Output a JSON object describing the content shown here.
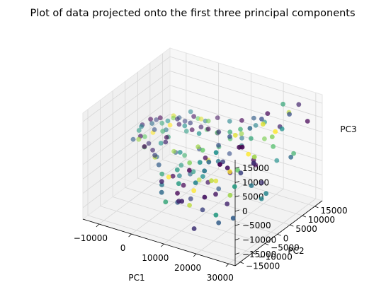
{
  "chart_data": {
    "type": "scatter",
    "projection": "3d",
    "title": "Plot of data projected onto the first three principal components",
    "xlabel": "PC1",
    "ylabel": "PC2",
    "zlabel": "PC3",
    "xlim": [
      -15000,
      32000
    ],
    "ylim": [
      -17000,
      18000
    ],
    "zlim": [
      -19000,
      18000
    ],
    "xticks": [
      -10000,
      0,
      10000,
      20000,
      30000
    ],
    "xtick_labels": [
      "−10000",
      "0",
      "10000",
      "20000",
      "30000"
    ],
    "yticks": [
      -15000,
      -10000,
      -5000,
      0,
      5000,
      10000,
      15000
    ],
    "ytick_labels": [
      "−15000",
      "−10000",
      "−5000",
      "0",
      "5000",
      "10000",
      "15000"
    ],
    "zticks": [
      -15000,
      -10000,
      -5000,
      0,
      5000,
      10000,
      15000
    ],
    "ztick_labels": [
      "−15000",
      "−10000",
      "−5000",
      "0",
      "5000",
      "10000",
      "15000"
    ],
    "grid": true,
    "colormap": "viridis",
    "colors": [
      "#440154",
      "#3b528b",
      "#21918c",
      "#5ec962",
      "#fde725"
    ],
    "points": [
      {
        "x": -12000,
        "y": 3000,
        "z": 2000,
        "c": 0.1
      },
      {
        "x": -11500,
        "y": 1000,
        "z": 1500,
        "c": 0.55
      },
      {
        "x": -11000,
        "y": 5000,
        "z": 3000,
        "c": 0.0
      },
      {
        "x": -11000,
        "y": -2000,
        "z": 500,
        "c": 0.3
      },
      {
        "x": -10500,
        "y": 2000,
        "z": -1000,
        "c": 0.75
      },
      {
        "x": -10000,
        "y": 6000,
        "z": 2500,
        "c": 0.2
      },
      {
        "x": -10000,
        "y": 0,
        "z": 4000,
        "c": 0.45
      },
      {
        "x": -9500,
        "y": 4000,
        "z": -500,
        "c": 1.0
      },
      {
        "x": -9500,
        "y": -1000,
        "z": 1500,
        "c": 0.05
      },
      {
        "x": -9000,
        "y": 7000,
        "z": 1000,
        "c": 0.6
      },
      {
        "x": -9000,
        "y": 3000,
        "z": 3500,
        "c": 0.35
      },
      {
        "x": -8500,
        "y": -3000,
        "z": 2000,
        "c": 0.85
      },
      {
        "x": -8500,
        "y": 1000,
        "z": -2000,
        "c": 0.15
      },
      {
        "x": -8000,
        "y": 8000,
        "z": 1500,
        "c": 0.5
      },
      {
        "x": -8000,
        "y": 5000,
        "z": 4500,
        "c": 0.0
      },
      {
        "x": -7500,
        "y": -2000,
        "z": -1000,
        "c": 0.7
      },
      {
        "x": -7500,
        "y": 2000,
        "z": 2500,
        "c": 0.25
      },
      {
        "x": -7000,
        "y": 9000,
        "z": 3000,
        "c": 0.95
      },
      {
        "x": -7000,
        "y": 6000,
        "z": 0,
        "c": 0.4
      },
      {
        "x": -6500,
        "y": 0,
        "z": -3000,
        "c": 0.1
      },
      {
        "x": -6500,
        "y": 4000,
        "z": 1000,
        "c": 0.65
      },
      {
        "x": -6000,
        "y": 10000,
        "z": 2000,
        "c": 0.3
      },
      {
        "x": -6000,
        "y": -4000,
        "z": 1000,
        "c": 0.0
      },
      {
        "x": -5500,
        "y": 7000,
        "z": 4000,
        "c": 0.8
      },
      {
        "x": -5500,
        "y": 2000,
        "z": -1500,
        "c": 0.5
      },
      {
        "x": -5000,
        "y": 11000,
        "z": 500,
        "c": 0.2
      },
      {
        "x": -5000,
        "y": 5000,
        "z": 3000,
        "c": 1.0
      },
      {
        "x": -4500,
        "y": -1000,
        "z": -4000,
        "c": 0.35
      },
      {
        "x": -4500,
        "y": 8000,
        "z": 1500,
        "c": 0.05
      },
      {
        "x": -4000,
        "y": 3000,
        "z": 500,
        "c": 0.6
      },
      {
        "x": -4000,
        "y": 12000,
        "z": 3500,
        "c": 0.45
      },
      {
        "x": -3500,
        "y": -3000,
        "z": -2500,
        "c": 0.9
      },
      {
        "x": -3500,
        "y": 6000,
        "z": 5000,
        "c": 0.15
      },
      {
        "x": -3000,
        "y": 9000,
        "z": -1000,
        "c": 0.55
      },
      {
        "x": -3000,
        "y": 1000,
        "z": 2000,
        "c": 0.0
      },
      {
        "x": -2500,
        "y": 13000,
        "z": 1000,
        "c": 0.75
      },
      {
        "x": -2500,
        "y": 4000,
        "z": -5000,
        "c": 0.3
      },
      {
        "x": -2000,
        "y": -5000,
        "z": 0,
        "c": 0.2
      },
      {
        "x": -2000,
        "y": 7000,
        "z": 2500,
        "c": 0.5
      },
      {
        "x": -1500,
        "y": 10000,
        "z": 4000,
        "c": 0.05
      },
      {
        "x": -1500,
        "y": 2000,
        "z": -3000,
        "c": 0.85
      },
      {
        "x": -1000,
        "y": 14000,
        "z": 0,
        "c": 0.4
      },
      {
        "x": -1000,
        "y": -2000,
        "z": 3000,
        "c": 0.1
      },
      {
        "x": -500,
        "y": 5000,
        "z": -6000,
        "c": 0.65
      },
      {
        "x": -500,
        "y": 8000,
        "z": 1000,
        "c": 0.0
      },
      {
        "x": 0,
        "y": 11000,
        "z": 3000,
        "c": 0.95
      },
      {
        "x": 0,
        "y": -6000,
        "z": -2000,
        "c": 0.3
      },
      {
        "x": 0,
        "y": 3000,
        "z": -8000,
        "c": 0.55
      },
      {
        "x": 500,
        "y": 6000,
        "z": 5000,
        "c": 0.2
      },
      {
        "x": 500,
        "y": -1000,
        "z": -9000,
        "c": 0.0
      },
      {
        "x": 1000,
        "y": 12000,
        "z": -1000,
        "c": 0.7
      },
      {
        "x": 1000,
        "y": 1000,
        "z": -10000,
        "c": 0.45
      },
      {
        "x": 1500,
        "y": 9000,
        "z": 2000,
        "c": 0.1
      },
      {
        "x": 1500,
        "y": -4000,
        "z": -7000,
        "c": 1.0
      },
      {
        "x": 2000,
        "y": 4000,
        "z": -11000,
        "c": 0.35
      },
      {
        "x": 2000,
        "y": 15000,
        "z": 1500,
        "c": 0.05
      },
      {
        "x": 2500,
        "y": -8000,
        "z": -3000,
        "c": 0.6
      },
      {
        "x": 2500,
        "y": 7000,
        "z": -4000,
        "c": 0.25
      },
      {
        "x": 3000,
        "y": 10000,
        "z": 4000,
        "c": 0.8
      },
      {
        "x": 3000,
        "y": 0,
        "z": -12000,
        "c": 0.0
      },
      {
        "x": 3500,
        "y": -2000,
        "z": 1000,
        "c": 0.5
      },
      {
        "x": 3500,
        "y": 13000,
        "z": -2000,
        "c": 0.15
      },
      {
        "x": 4000,
        "y": 5000,
        "z": -13000,
        "c": 0.9
      },
      {
        "x": 4000,
        "y": -10000,
        "z": -5000,
        "c": 0.4
      },
      {
        "x": 4500,
        "y": 8000,
        "z": 3000,
        "c": 0.0
      },
      {
        "x": 4500,
        "y": 2000,
        "z": -8000,
        "c": 0.55
      },
      {
        "x": 5000,
        "y": -5000,
        "z": -14000,
        "c": 0.3
      },
      {
        "x": 5000,
        "y": 11000,
        "z": 0,
        "c": 0.75
      },
      {
        "x": 5500,
        "y": -12000,
        "z": -2000,
        "c": 0.1
      },
      {
        "x": 5500,
        "y": 3000,
        "z": 5000,
        "c": 0.5
      },
      {
        "x": 6000,
        "y": 6000,
        "z": -6000,
        "c": 0.95
      },
      {
        "x": 6000,
        "y": -1000,
        "z": -15000,
        "c": 0.2
      },
      {
        "x": 6500,
        "y": 14000,
        "z": 2500,
        "c": 0.45
      },
      {
        "x": 6500,
        "y": -7000,
        "z": -9000,
        "c": 0.0
      },
      {
        "x": 7000,
        "y": 9000,
        "z": -3000,
        "c": 0.65
      },
      {
        "x": 7000,
        "y": -14000,
        "z": -4000,
        "c": 0.35
      },
      {
        "x": 7500,
        "y": 0,
        "z": 3000,
        "c": 0.85
      },
      {
        "x": 7500,
        "y": 4000,
        "z": -12000,
        "c": 0.05
      },
      {
        "x": 8000,
        "y": -9000,
        "z": 1000,
        "c": 0.55
      },
      {
        "x": 8000,
        "y": 12000,
        "z": -7000,
        "c": 0.25
      },
      {
        "x": 8500,
        "y": -3000,
        "z": -10000,
        "c": 1.0
      },
      {
        "x": 8500,
        "y": 7000,
        "z": 4000,
        "c": 0.15
      },
      {
        "x": 9000,
        "y": -15000,
        "z": -6000,
        "c": 0.6
      },
      {
        "x": 9000,
        "y": 1000,
        "z": -1000,
        "c": 0.0
      },
      {
        "x": 9500,
        "y": 15000,
        "z": -3000,
        "c": 0.4
      },
      {
        "x": 9500,
        "y": -6000,
        "z": 2000,
        "c": 0.8
      },
      {
        "x": 10000,
        "y": 5000,
        "z": -14000,
        "c": 0.3
      },
      {
        "x": 10000,
        "y": -11000,
        "z": -8000,
        "c": 0.1
      },
      {
        "x": 10500,
        "y": 9000,
        "z": 1000,
        "c": 0.7
      },
      {
        "x": 10500,
        "y": -2000,
        "z": -5000,
        "c": 0.5
      },
      {
        "x": 11000,
        "y": 13000,
        "z": 5000,
        "c": 0.0
      },
      {
        "x": 11000,
        "y": -8000,
        "z": -11000,
        "c": 0.9
      },
      {
        "x": 11500,
        "y": 3000,
        "z": 3000,
        "c": 0.25
      },
      {
        "x": 11500,
        "y": -13000,
        "z": 0,
        "c": 0.55
      },
      {
        "x": 12000,
        "y": 7000,
        "z": -9000,
        "c": 0.05
      },
      {
        "x": 12000,
        "y": -4000,
        "z": 6000,
        "c": 0.75
      },
      {
        "x": 12500,
        "y": 11000,
        "z": -2000,
        "c": 0.35
      },
      {
        "x": 12500,
        "y": -10000,
        "z": 3000,
        "c": 0.0
      },
      {
        "x": 13000,
        "y": 0,
        "z": -7000,
        "c": 0.95
      },
      {
        "x": 13000,
        "y": 16000,
        "z": 2000,
        "c": 0.45
      },
      {
        "x": 13500,
        "y": -6000,
        "z": -13000,
        "c": 0.2
      },
      {
        "x": 13500,
        "y": 5000,
        "z": 7000,
        "c": 0.6
      },
      {
        "x": 14000,
        "y": -15000,
        "z": -4000,
        "c": 0.1
      },
      {
        "x": 14000,
        "y": 9000,
        "z": 4000,
        "c": 0.85
      },
      {
        "x": 14500,
        "y": -1000,
        "z": 1000,
        "c": 0.4
      },
      {
        "x": 14500,
        "y": 14000,
        "z": -10000,
        "c": 0.0
      },
      {
        "x": 15000,
        "y": -9000,
        "z": 6000,
        "c": 0.5
      },
      {
        "x": 15000,
        "y": 3000,
        "z": -5000,
        "c": 1.0
      },
      {
        "x": 15500,
        "y": 12000,
        "z": 8000,
        "c": 0.3
      },
      {
        "x": 15500,
        "y": -12000,
        "z": -15000,
        "c": 0.15
      },
      {
        "x": 16000,
        "y": 6000,
        "z": 2000,
        "c": 0.7
      },
      {
        "x": 16000,
        "y": -4000,
        "z": -8000,
        "c": 0.05
      },
      {
        "x": 16500,
        "y": 15000,
        "z": 5000,
        "c": 0.55
      },
      {
        "x": 16500,
        "y": 1000,
        "z": 9000,
        "c": 0.25
      },
      {
        "x": 17000,
        "y": -7000,
        "z": -1000,
        "c": 0.9
      },
      {
        "x": 17000,
        "y": 10000,
        "z": -6000,
        "c": 0.0
      },
      {
        "x": 17500,
        "y": -14000,
        "z": 3000,
        "c": 0.45
      },
      {
        "x": 17500,
        "y": 4000,
        "z": 10000,
        "c": 0.65
      },
      {
        "x": 18000,
        "y": -2000,
        "z": -12000,
        "c": 0.1
      },
      {
        "x": 18000,
        "y": 13000,
        "z": 1000,
        "c": 0.8
      },
      {
        "x": 18500,
        "y": -10000,
        "z": 8000,
        "c": 0.35
      },
      {
        "x": 18500,
        "y": 8000,
        "z": -3000,
        "c": 0.0
      },
      {
        "x": 19000,
        "y": 0,
        "z": 11000,
        "c": 0.95
      },
      {
        "x": 19000,
        "y": -5000,
        "z": 5000,
        "c": 0.2
      },
      {
        "x": 19500,
        "y": 16000,
        "z": -8000,
        "c": 0.5
      },
      {
        "x": 19500,
        "y": -13000,
        "z": -2000,
        "c": 0.05
      },
      {
        "x": 20000,
        "y": 5000,
        "z": 7000,
        "c": 0.6
      },
      {
        "x": 20000,
        "y": -8000,
        "z": -14000,
        "c": 0.3
      },
      {
        "x": 20500,
        "y": 11000,
        "z": 12000,
        "c": 0.0
      },
      {
        "x": 20500,
        "y": -1000,
        "z": 0,
        "c": 0.75
      },
      {
        "x": 21000,
        "y": -15000,
        "z": 9000,
        "c": 0.4
      },
      {
        "x": 21000,
        "y": 8000,
        "z": -10000,
        "c": 0.15
      },
      {
        "x": 21500,
        "y": 2000,
        "z": 4000,
        "c": 1.0
      },
      {
        "x": 21500,
        "y": -11000,
        "z": 13000,
        "c": 0.5
      },
      {
        "x": 22000,
        "y": 14000,
        "z": 6000,
        "c": 0.1
      },
      {
        "x": 22000,
        "y": -6000,
        "z": -5000,
        "c": 0.85
      },
      {
        "x": 22500,
        "y": 6000,
        "z": 14000,
        "c": 0.25
      },
      {
        "x": 22500,
        "y": -3000,
        "z": 10000,
        "c": 0.0
      },
      {
        "x": 23000,
        "y": -13000,
        "z": -7000,
        "c": 0.55
      },
      {
        "x": 23000,
        "y": 10000,
        "z": 2000,
        "c": 0.7
      },
      {
        "x": 23500,
        "y": 0,
        "z": 15000,
        "c": 0.35
      },
      {
        "x": 23500,
        "y": -9000,
        "z": 7000,
        "c": 0.05
      },
      {
        "x": 24000,
        "y": 15000,
        "z": 11000,
        "c": 0.9
      },
      {
        "x": 24000,
        "y": 4000,
        "z": -12000,
        "c": 0.45
      },
      {
        "x": 24500,
        "y": -5000,
        "z": 3000,
        "c": 0.2
      },
      {
        "x": 24500,
        "y": 12000,
        "z": 16000,
        "c": 0.6
      },
      {
        "x": 25000,
        "y": -14000,
        "z": 12000,
        "c": 0.0
      },
      {
        "x": 25000,
        "y": 7000,
        "z": 8000,
        "c": 0.8
      },
      {
        "x": 25500,
        "y": -2000,
        "z": -3000,
        "c": 0.4
      },
      {
        "x": 25500,
        "y": 17000,
        "z": 13000,
        "c": 0.1
      },
      {
        "x": 26000,
        "y": 2000,
        "z": 16000,
        "c": 0.95
      },
      {
        "x": 26000,
        "y": -10000,
        "z": -9000,
        "c": 0.3
      },
      {
        "x": 26500,
        "y": 9000,
        "z": 10000,
        "c": 0.5
      },
      {
        "x": 26500,
        "y": -7000,
        "z": 14000,
        "c": 0.0
      },
      {
        "x": 27000,
        "y": 13000,
        "z": -1000,
        "c": 0.65
      },
      {
        "x": 27000,
        "y": -3000,
        "z": 6000,
        "c": 0.15
      },
      {
        "x": 27500,
        "y": 5000,
        "z": 12000,
        "c": 1.0
      },
      {
        "x": 28000,
        "y": -12000,
        "z": 4000,
        "c": 0.55
      },
      {
        "x": 28000,
        "y": 10000,
        "z": 15000,
        "c": 0.25
      },
      {
        "x": 28500,
        "y": 0,
        "z": -6000,
        "c": 0.45
      },
      {
        "x": 29000,
        "y": 16000,
        "z": 9000,
        "c": 0.0
      },
      {
        "x": 29500,
        "y": -6000,
        "z": 11000,
        "c": 0.85
      },
      {
        "x": 30000,
        "y": 8000,
        "z": 2000,
        "c": 0.35
      }
    ]
  }
}
